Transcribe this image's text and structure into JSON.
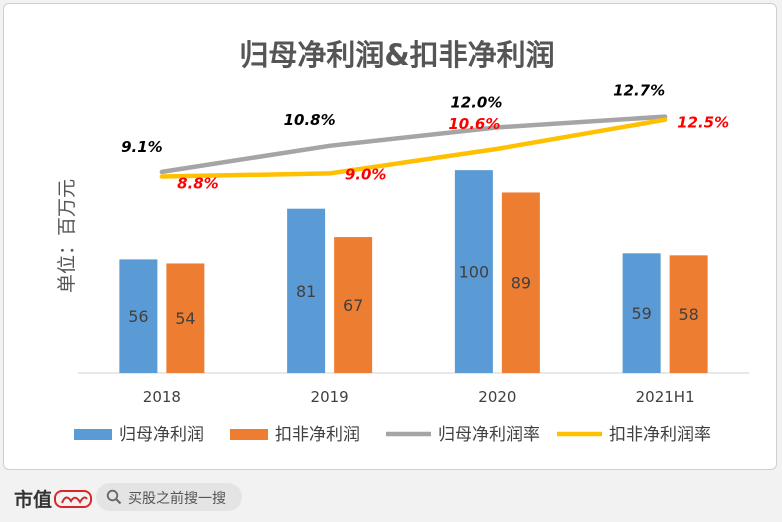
{
  "chart_data": {
    "type": "bar",
    "title": "归母净利润&扣非净利润",
    "ylabel": "单位：百万元",
    "xlabel": "",
    "categories": [
      "2018",
      "2019",
      "2020",
      "2021H1"
    ],
    "bar_ylim": [
      0,
      140
    ],
    "rate_ylim": [
      -4,
      14.5
    ],
    "series": [
      {
        "name": "归母净利润",
        "kind": "bar",
        "color": "#5b9bd5",
        "values": [
          56,
          81,
          100,
          59
        ],
        "labels": [
          "56",
          "81",
          "100",
          "59"
        ]
      },
      {
        "name": "扣非净利润",
        "kind": "bar",
        "color": "#ed7d31",
        "values": [
          54,
          67,
          89,
          58
        ],
        "labels": [
          "54",
          "67",
          "89",
          "58"
        ]
      },
      {
        "name": "归母净利润率",
        "kind": "line",
        "color": "#a5a5a5",
        "label_color": "#000000",
        "values": [
          9.1,
          10.8,
          12.0,
          12.7
        ],
        "labels": [
          "9.1%",
          "10.8%",
          "12.0%",
          "12.7%"
        ]
      },
      {
        "name": "扣非净利润率",
        "kind": "line",
        "color": "#ffc000",
        "label_color": "#ff0000",
        "values": [
          8.8,
          9.0,
          10.6,
          12.5
        ],
        "labels": [
          "8.8%",
          "9.0%",
          "10.6%",
          "12.5%"
        ]
      }
    ],
    "legend_position": "bottom",
    "grid": false
  },
  "footer": {
    "brand": "市值",
    "search_placeholder": "买股之前搜一搜"
  },
  "colors": {
    "axis": "#d0d0d0",
    "text": "#404040"
  }
}
